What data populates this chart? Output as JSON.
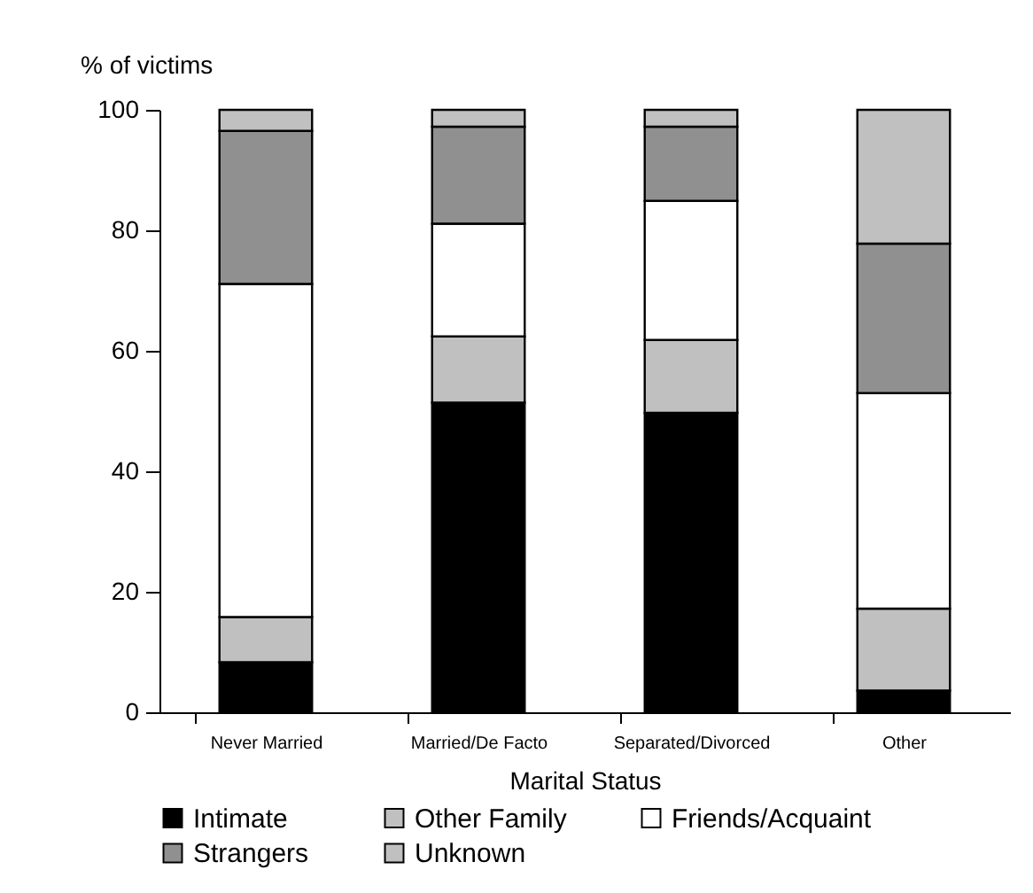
{
  "chart_data": {
    "type": "bar",
    "stacked": true,
    "ylabel": "% of victims",
    "xlabel": "Marital Status",
    "categories": [
      "Never Married",
      "Married/De Facto",
      "Separated/Divorced",
      "Other"
    ],
    "series": [
      {
        "name": "Intimate",
        "color": "#000000",
        "values": [
          8.3,
          51.4,
          49.7,
          3.6
        ]
      },
      {
        "name": "Other Family",
        "color": "#c0c0c0",
        "values": [
          7.5,
          11,
          12.1,
          13.6
        ]
      },
      {
        "name": "Friends/Acquaint",
        "color": "#ffffff",
        "values": [
          55.3,
          18.7,
          23.1,
          35.8
        ]
      },
      {
        "name": "Strangers",
        "color": "#909090",
        "values": [
          25.4,
          16.1,
          12.3,
          24.8
        ]
      },
      {
        "name": "Unknown",
        "color": "#c0c0c0",
        "values": [
          3.5,
          2.8,
          2.8,
          22.2
        ]
      }
    ],
    "ylim": [
      0,
      100
    ],
    "yticks": [
      0,
      20,
      40,
      60,
      80,
      100
    ],
    "grid": false,
    "legend": "bottom"
  }
}
